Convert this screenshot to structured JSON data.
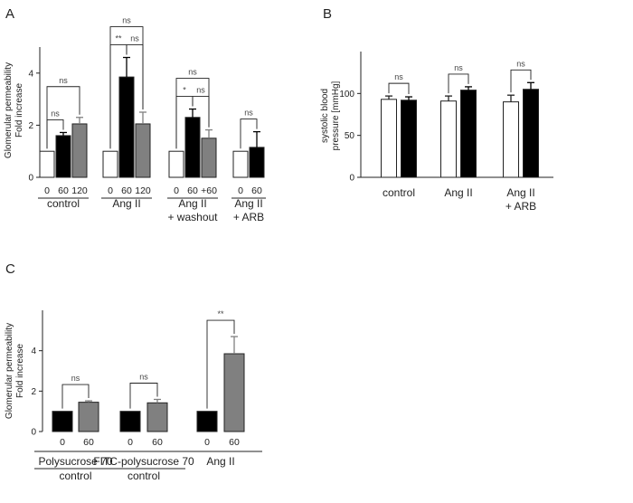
{
  "colors": {
    "black": "#000000",
    "gray": "#808080",
    "white": "#ffffff",
    "line": "#222222",
    "ns_text": "#444444"
  },
  "chart_data": [
    {
      "panel": "A",
      "type": "bar",
      "ylabel_lines": [
        "Glomerular permeability",
        "Fold increase"
      ],
      "ylim": [
        0,
        5
      ],
      "yticks": [
        0,
        2,
        4
      ],
      "groups": [
        {
          "label_lines": [
            "control"
          ],
          "ticks": [
            "0",
            "60",
            "120"
          ],
          "values": [
            1.0,
            1.6,
            2.05
          ],
          "errors": [
            0,
            0.12,
            0.25
          ],
          "fills": [
            "white",
            "black",
            "gray"
          ],
          "brackets": [
            {
              "from": 0,
              "to": 1,
              "text": "ns"
            },
            {
              "from": 0,
              "to": 2,
              "text": "ns"
            }
          ]
        },
        {
          "label_lines": [
            "Ang II"
          ],
          "ticks": [
            "0",
            "60",
            "120"
          ],
          "values": [
            1.0,
            3.85,
            2.05
          ],
          "errors": [
            0,
            0.75,
            0.45
          ],
          "fills": [
            "white",
            "black",
            "gray"
          ],
          "brackets": [
            {
              "from": 0,
              "to": 1,
              "text": "**"
            },
            {
              "from": 1,
              "to": 2,
              "text": "ns"
            },
            {
              "from": 0,
              "to": 2,
              "text": "ns"
            }
          ]
        },
        {
          "label_lines": [
            "Ang II",
            "+ washout"
          ],
          "ticks": [
            "0",
            "60",
            "+60"
          ],
          "values": [
            1.0,
            2.3,
            1.5
          ],
          "errors": [
            0,
            0.32,
            0.32
          ],
          "fills": [
            "white",
            "black",
            "gray"
          ],
          "brackets": [
            {
              "from": 0,
              "to": 1,
              "text": "*"
            },
            {
              "from": 1,
              "to": 2,
              "text": "ns"
            },
            {
              "from": 0,
              "to": 2,
              "text": "ns"
            }
          ]
        },
        {
          "label_lines": [
            "Ang II",
            "+ ARB"
          ],
          "ticks": [
            "0",
            "60"
          ],
          "values": [
            1.0,
            1.15
          ],
          "errors": [
            0,
            0.6
          ],
          "fills": [
            "white",
            "black"
          ],
          "brackets": [
            {
              "from": 0,
              "to": 1,
              "text": "ns"
            }
          ]
        }
      ]
    },
    {
      "panel": "B",
      "type": "bar",
      "ylabel_lines": [
        "systolic blood",
        "pressure [mmHg]"
      ],
      "ylim": [
        0,
        150
      ],
      "yticks": [
        0,
        50,
        100
      ],
      "groups": [
        {
          "label_lines": [
            "control"
          ],
          "ticks": [],
          "values": [
            93,
            92
          ],
          "errors": [
            4,
            4
          ],
          "fills": [
            "white",
            "black"
          ],
          "brackets": [
            {
              "from": 0,
              "to": 1,
              "text": "ns"
            }
          ]
        },
        {
          "label_lines": [
            "Ang II"
          ],
          "ticks": [],
          "values": [
            91,
            104
          ],
          "errors": [
            6,
            4
          ],
          "fills": [
            "white",
            "black"
          ],
          "brackets": [
            {
              "from": 0,
              "to": 1,
              "text": "ns"
            }
          ]
        },
        {
          "label_lines": [
            "Ang II",
            "+ ARB"
          ],
          "ticks": [],
          "values": [
            90,
            105
          ],
          "errors": [
            8,
            8
          ],
          "fills": [
            "white",
            "black"
          ],
          "brackets": [
            {
              "from": 0,
              "to": 1,
              "text": "ns"
            }
          ]
        }
      ]
    },
    {
      "panel": "C",
      "type": "bar",
      "ylabel_lines": [
        "Glomerular permeability",
        "Fold increase"
      ],
      "ylim": [
        0,
        6
      ],
      "yticks": [
        0,
        2,
        4
      ],
      "groups": [
        {
          "label_lines": [
            "Polysucrose 70",
            "control"
          ],
          "ticks": [
            "0",
            "60"
          ],
          "values": [
            1.0,
            1.45
          ],
          "errors": [
            0,
            0.07
          ],
          "fills": [
            "black",
            "gray"
          ],
          "brackets": [
            {
              "from": 0,
              "to": 1,
              "text": "ns"
            }
          ]
        },
        {
          "label_lines": [
            "FITC-polysucrose 70",
            "control"
          ],
          "ticks": [
            "0",
            "60"
          ],
          "values": [
            1.0,
            1.42
          ],
          "errors": [
            0,
            0.17
          ],
          "fills": [
            "black",
            "gray"
          ],
          "brackets": [
            {
              "from": 0,
              "to": 1,
              "text": "ns"
            }
          ]
        },
        {
          "label_lines": [
            "Ang II"
          ],
          "ticks": [
            "0",
            "60"
          ],
          "values": [
            1.0,
            3.85
          ],
          "errors": [
            0,
            0.85
          ],
          "fills": [
            "black",
            "gray"
          ],
          "brackets": [
            {
              "from": 0,
              "to": 1,
              "text": "**"
            }
          ]
        }
      ]
    }
  ]
}
